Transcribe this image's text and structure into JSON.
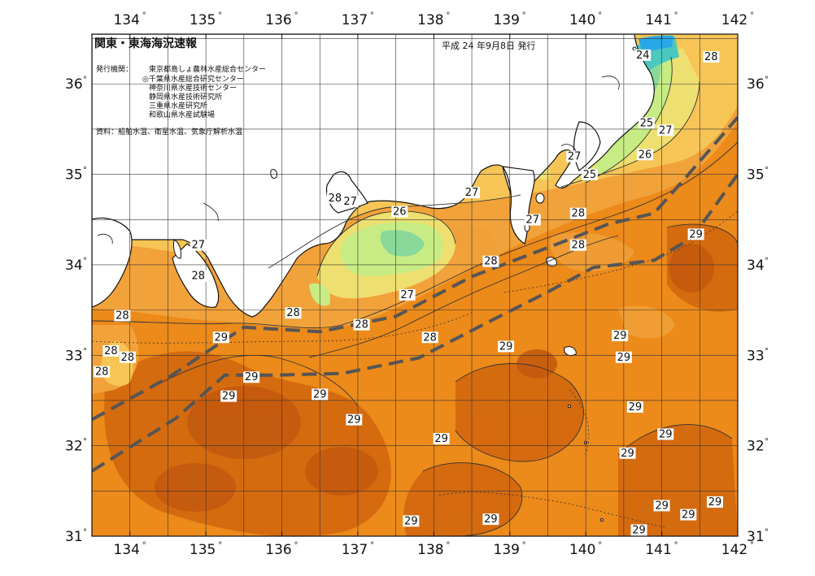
{
  "header": {
    "title": "関東・東海海況速報",
    "date": "平成 24 年9月8日 発行",
    "issuer_label": "発行機関：",
    "issuers": [
      "東京都島しょ農林水産総合センター",
      "◎千葉県水産総合研究センター",
      "神奈川県水産技術センター",
      "静岡県水産技術研究所",
      "三重県水産研究所",
      "和歌山県水産試験場"
    ],
    "sources": "資料：船舶水温、衛星水温、気象庁解析水温"
  },
  "axes": {
    "lon_ticks": [
      "134",
      "135",
      "136",
      "137",
      "138",
      "139",
      "140",
      "141",
      "142"
    ],
    "lat_ticks": [
      "36",
      "35",
      "34",
      "33",
      "32",
      "31"
    ],
    "degree_symbol": "°",
    "lon_range": [
      133.5,
      142.0
    ],
    "lat_range": [
      31.0,
      36.55
    ]
  },
  "colors": {
    "ocean_29": "#ec8a1a",
    "ocean_29b": "#e07a16",
    "ocean_30": "#cf6512",
    "ocean_28": "#f2a23a",
    "ocean_27": "#f7c556",
    "ocean_26": "#f0e070",
    "ocean_25": "#c8ec84",
    "ocean_24": "#86de9a",
    "ocean_23": "#4bc8c0",
    "ocean_22": "#28a8e6",
    "land": "#ffffff",
    "grid": "#333333",
    "kuroshio": "#555555",
    "isotherm": "#333333"
  },
  "isotherm_labels": [
    {
      "text": "24",
      "lon": 140.75,
      "lat": 36.3
    },
    {
      "text": "28",
      "lon": 141.65,
      "lat": 36.28
    },
    {
      "text": "25",
      "lon": 140.8,
      "lat": 35.55
    },
    {
      "text": "27",
      "lon": 141.05,
      "lat": 35.47
    },
    {
      "text": "26",
      "lon": 140.78,
      "lat": 35.2
    },
    {
      "text": "27",
      "lon": 139.85,
      "lat": 35.18
    },
    {
      "text": "25",
      "lon": 140.05,
      "lat": 34.98
    },
    {
      "text": "27",
      "lon": 138.5,
      "lat": 34.78
    },
    {
      "text": "28",
      "lon": 136.7,
      "lat": 34.72
    },
    {
      "text": "27",
      "lon": 136.9,
      "lat": 34.68
    },
    {
      "text": "26",
      "lon": 137.55,
      "lat": 34.57
    },
    {
      "text": "27",
      "lon": 139.3,
      "lat": 34.48
    },
    {
      "text": "28",
      "lon": 139.9,
      "lat": 34.55
    },
    {
      "text": "29",
      "lon": 141.45,
      "lat": 34.32
    },
    {
      "text": "27",
      "lon": 134.9,
      "lat": 34.2
    },
    {
      "text": "28",
      "lon": 139.9,
      "lat": 34.2
    },
    {
      "text": "28",
      "lon": 138.75,
      "lat": 34.02
    },
    {
      "text": "28",
      "lon": 134.9,
      "lat": 33.86
    },
    {
      "text": "27",
      "lon": 137.65,
      "lat": 33.65
    },
    {
      "text": "28",
      "lon": 133.9,
      "lat": 33.42
    },
    {
      "text": "28",
      "lon": 136.15,
      "lat": 33.45
    },
    {
      "text": "28",
      "lon": 137.05,
      "lat": 33.32
    },
    {
      "text": "29",
      "lon": 135.2,
      "lat": 33.18
    },
    {
      "text": "28",
      "lon": 137.95,
      "lat": 33.18
    },
    {
      "text": "29",
      "lon": 138.95,
      "lat": 33.08
    },
    {
      "text": "29",
      "lon": 140.45,
      "lat": 33.2
    },
    {
      "text": "28",
      "lon": 133.75,
      "lat": 33.03
    },
    {
      "text": "28",
      "lon": 133.97,
      "lat": 32.96
    },
    {
      "text": "29",
      "lon": 140.5,
      "lat": 32.96
    },
    {
      "text": "28",
      "lon": 133.63,
      "lat": 32.8
    },
    {
      "text": "29",
      "lon": 135.6,
      "lat": 32.74
    },
    {
      "text": "29",
      "lon": 135.3,
      "lat": 32.53
    },
    {
      "text": "29",
      "lon": 136.5,
      "lat": 32.55
    },
    {
      "text": "29",
      "lon": 140.65,
      "lat": 32.41
    },
    {
      "text": "29",
      "lon": 136.95,
      "lat": 32.27
    },
    {
      "text": "29",
      "lon": 141.05,
      "lat": 32.11
    },
    {
      "text": "29",
      "lon": 138.1,
      "lat": 32.06
    },
    {
      "text": "29",
      "lon": 140.55,
      "lat": 31.9
    },
    {
      "text": "29",
      "lon": 141.0,
      "lat": 31.32
    },
    {
      "text": "29",
      "lon": 141.7,
      "lat": 31.36
    },
    {
      "text": "29",
      "lon": 141.35,
      "lat": 31.22
    },
    {
      "text": "29",
      "lon": 137.7,
      "lat": 31.15
    },
    {
      "text": "29",
      "lon": 138.75,
      "lat": 31.17
    },
    {
      "text": "29",
      "lon": 140.7,
      "lat": 31.05
    }
  ],
  "kuroshio_paths": [
    [
      [
        133.5,
        32.29
      ],
      [
        134.5,
        32.75
      ],
      [
        135.5,
        33.31
      ],
      [
        136.5,
        33.26
      ],
      [
        137.5,
        33.43
      ],
      [
        138.5,
        33.87
      ],
      [
        139.5,
        34.19
      ],
      [
        140.3,
        34.45
      ],
      [
        140.9,
        34.57
      ],
      [
        141.3,
        34.95
      ],
      [
        142.0,
        35.63
      ]
    ],
    [
      [
        133.5,
        31.72
      ],
      [
        134.6,
        32.3
      ],
      [
        135.25,
        32.78
      ],
      [
        135.9,
        32.78
      ],
      [
        136.8,
        32.8
      ],
      [
        137.8,
        32.97
      ],
      [
        138.7,
        33.36
      ],
      [
        139.5,
        33.7
      ],
      [
        140.1,
        33.97
      ],
      [
        140.9,
        34.05
      ],
      [
        141.4,
        34.3
      ],
      [
        142.0,
        35.0
      ]
    ]
  ]
}
